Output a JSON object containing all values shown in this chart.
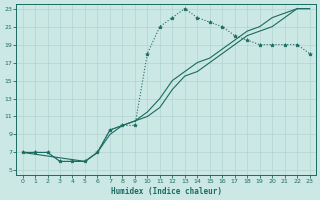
{
  "xlabel": "Humidex (Indice chaleur)",
  "xlim": [
    -0.5,
    23.5
  ],
  "ylim": [
    4.5,
    23.5
  ],
  "xticks": [
    0,
    1,
    2,
    3,
    4,
    5,
    6,
    7,
    8,
    9,
    10,
    11,
    12,
    13,
    14,
    15,
    16,
    17,
    18,
    19,
    20,
    21,
    22,
    23
  ],
  "yticks": [
    5,
    7,
    9,
    11,
    13,
    15,
    17,
    19,
    21,
    23
  ],
  "bg_color": "#cce8e5",
  "line_color": "#1a6b60",
  "grid_color": "#aad0cc",
  "curve1_x": [
    0,
    1,
    2,
    3,
    4,
    5,
    6,
    7,
    8,
    9,
    10,
    11,
    12,
    13,
    14,
    15,
    16,
    17,
    18,
    19,
    20,
    21,
    22,
    23
  ],
  "curve1_y": [
    7,
    7,
    7,
    6,
    6,
    6,
    7,
    9.5,
    10,
    10,
    18,
    21,
    22,
    23,
    22,
    21.5,
    21,
    20,
    19.5,
    19,
    19,
    19,
    19,
    18
  ],
  "curve2_x": [
    0,
    2,
    3,
    5,
    6,
    7,
    8,
    9,
    10,
    11,
    12,
    13,
    14,
    15,
    16,
    17,
    18,
    19,
    20,
    21,
    22,
    23
  ],
  "curve2_y": [
    7,
    7,
    6,
    6,
    7,
    9.5,
    10,
    10.5,
    11,
    12,
    14,
    15.5,
    16,
    17,
    18,
    19,
    20,
    20.5,
    21,
    22,
    23,
    23
  ],
  "curve3_x": [
    0,
    5,
    6,
    7,
    8,
    9,
    10,
    11,
    12,
    13,
    14,
    15,
    16,
    17,
    18,
    19,
    20,
    21,
    22,
    23
  ],
  "curve3_y": [
    7,
    6,
    7,
    9,
    10,
    10.5,
    11.5,
    13,
    15,
    16,
    17,
    17.5,
    18.5,
    19.5,
    20.5,
    21,
    22,
    22.5,
    23,
    23
  ]
}
